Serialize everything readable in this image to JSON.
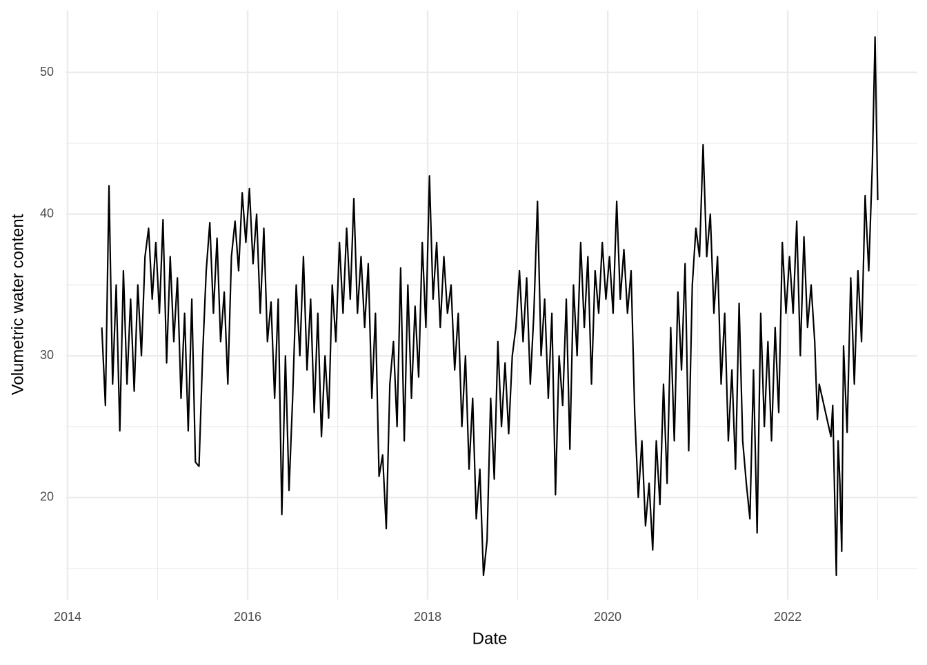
{
  "chart_data": {
    "type": "line",
    "x_label": "Date",
    "y_label": "Volumetric water content",
    "xlim": [
      2013.977,
      2023.44
    ],
    "ylim": [
      12.8,
      54.38
    ],
    "xticks": [
      2014,
      2016,
      2018,
      2020,
      2022
    ],
    "yticks": [
      20,
      30,
      40,
      50
    ],
    "x_minor_ticks": [
      2015,
      2017,
      2019,
      2021,
      2023
    ],
    "y_minor_ticks": [
      15,
      25,
      35,
      45
    ],
    "grid": true,
    "x": [
      2014.38,
      2014.42,
      2014.46,
      2014.5,
      2014.54,
      2014.58,
      2014.62,
      2014.66,
      2014.7,
      2014.74,
      2014.78,
      2014.82,
      2014.86,
      2014.9,
      2014.94,
      2014.98,
      2015.02,
      2015.06,
      2015.1,
      2015.14,
      2015.18,
      2015.22,
      2015.26,
      2015.3,
      2015.34,
      2015.38,
      2015.42,
      2015.46,
      2015.5,
      2015.54,
      2015.58,
      2015.62,
      2015.66,
      2015.7,
      2015.74,
      2015.78,
      2015.82,
      2015.86,
      2015.9,
      2015.94,
      2015.98,
      2016.02,
      2016.06,
      2016.1,
      2016.14,
      2016.18,
      2016.22,
      2016.26,
      2016.3,
      2016.34,
      2016.38,
      2016.42,
      2016.46,
      2016.5,
      2016.54,
      2016.58,
      2016.62,
      2016.66,
      2016.7,
      2016.74,
      2016.78,
      2016.82,
      2016.86,
      2016.9,
      2016.94,
      2016.98,
      2017.02,
      2017.06,
      2017.1,
      2017.14,
      2017.18,
      2017.22,
      2017.26,
      2017.3,
      2017.34,
      2017.38,
      2017.42,
      2017.46,
      2017.5,
      2017.54,
      2017.58,
      2017.62,
      2017.66,
      2017.7,
      2017.74,
      2017.78,
      2017.82,
      2017.86,
      2017.9,
      2017.94,
      2017.98,
      2018.02,
      2018.06,
      2018.1,
      2018.14,
      2018.18,
      2018.22,
      2018.26,
      2018.3,
      2018.34,
      2018.38,
      2018.42,
      2018.46,
      2018.5,
      2018.54,
      2018.58,
      2018.62,
      2018.66,
      2018.7,
      2018.74,
      2018.78,
      2018.82,
      2018.86,
      2018.9,
      2018.94,
      2018.98,
      2019.02,
      2019.06,
      2019.1,
      2019.14,
      2019.18,
      2019.22,
      2019.26,
      2019.3,
      2019.34,
      2019.38,
      2019.42,
      2019.46,
      2019.5,
      2019.54,
      2019.58,
      2019.62,
      2019.66,
      2019.7,
      2019.74,
      2019.78,
      2019.82,
      2019.86,
      2019.9,
      2019.94,
      2019.98,
      2020.02,
      2020.06,
      2020.1,
      2020.14,
      2020.18,
      2020.22,
      2020.26,
      2020.3,
      2020.34,
      2020.38,
      2020.42,
      2020.46,
      2020.5,
      2020.54,
      2020.58,
      2020.62,
      2020.66,
      2020.7,
      2020.74,
      2020.78,
      2020.82,
      2020.86,
      2020.9,
      2020.94,
      2020.98,
      2021.02,
      2021.06,
      2021.1,
      2021.14,
      2021.18,
      2021.22,
      2021.26,
      2021.3,
      2021.34,
      2021.38,
      2021.42,
      2021.46,
      2021.5,
      2021.54,
      2021.58,
      2021.62,
      2021.66,
      2021.7,
      2021.74,
      2021.78,
      2021.82,
      2021.86,
      2021.9,
      2021.94,
      2021.98,
      2022.02,
      2022.06,
      2022.1,
      2022.14,
      2022.18,
      2022.22,
      2022.26,
      2022.3,
      2022.33,
      2022.35,
      2022.48,
      2022.5,
      2022.54,
      2022.56,
      2022.58,
      2022.6,
      2022.62,
      2022.66,
      2022.7,
      2022.74,
      2022.78,
      2022.82,
      2022.86,
      2022.9,
      2022.94,
      2022.97,
      2023
    ],
    "series": [
      {
        "color": "#000000",
        "values": [
          32,
          26.5,
          42,
          28,
          35,
          24.7,
          36,
          28,
          34,
          27.5,
          35,
          30,
          37,
          39,
          34,
          38,
          33,
          39.6,
          29.5,
          37,
          31,
          35.5,
          27,
          33,
          24.7,
          34,
          22.5,
          22.2,
          30,
          36,
          39.4,
          33,
          38.3,
          31,
          34.5,
          28,
          37,
          39.5,
          36,
          41.5,
          38,
          41.8,
          36.5,
          40,
          33,
          39,
          31,
          33.8,
          27,
          34,
          18.8,
          30,
          20.5,
          27,
          35,
          30,
          37,
          29,
          34,
          26,
          33,
          24.3,
          30,
          25.6,
          35,
          31,
          38,
          33,
          39,
          34,
          41.1,
          33,
          37,
          32,
          36.5,
          27,
          33,
          21.5,
          23,
          17.8,
          28,
          31,
          25,
          36.2,
          24,
          35,
          27,
          33.5,
          28.5,
          38,
          32,
          42.7,
          34,
          38,
          32,
          37,
          33,
          35,
          29,
          33,
          25,
          30,
          22,
          27,
          18.5,
          22,
          14.5,
          17,
          27,
          21.3,
          31,
          25,
          29.5,
          24.5,
          30,
          32,
          36,
          31,
          35.5,
          28,
          33,
          40.9,
          30,
          34,
          27,
          33,
          20.2,
          30,
          26.5,
          34,
          23.4,
          35,
          30,
          38,
          32,
          37,
          28,
          36,
          33,
          38,
          34,
          37,
          33,
          40.9,
          34,
          37.5,
          33,
          36,
          26,
          20,
          24,
          18,
          21,
          16.3,
          24,
          19.5,
          28,
          21,
          32,
          24,
          34.5,
          29,
          36.5,
          23.3,
          35,
          39,
          37,
          44.9,
          37,
          40,
          33,
          37,
          28,
          33,
          24,
          29,
          22,
          33.7,
          24,
          21,
          18.5,
          29,
          17.5,
          33,
          25,
          31,
          24,
          32,
          26,
          38,
          33,
          37,
          33,
          39.5,
          30,
          38.4,
          32,
          35,
          31,
          25.5,
          28,
          24.3,
          26.5,
          14.5,
          24,
          21,
          16.2,
          30.7,
          24.6,
          35.5,
          28,
          36,
          31,
          41.3,
          36,
          43.5,
          52.5,
          41
        ]
      }
    ]
  }
}
